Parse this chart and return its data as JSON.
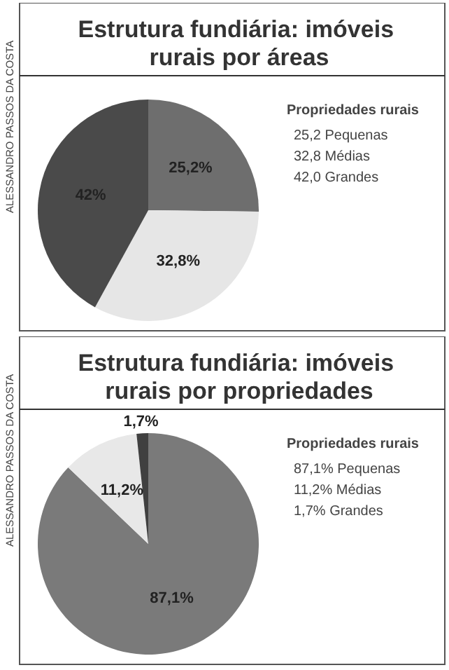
{
  "chart_data": [
    {
      "type": "pie",
      "title": "Estrutura fundiária: imóveis rurais por áreas",
      "categories": [
        null,
        null,
        null
      ],
      "values": [
        25.2,
        32.8,
        42.0
      ],
      "value_labels": [
        "25,2%",
        "32,8%",
        "42%"
      ],
      "colors": [
        "#6e6e6e",
        "#e6e6e6",
        "#4a4a4a"
      ],
      "annotations": [
        "ALESSANDRO PASSOS DA COSTA",
        "Propriedades rurais",
        "25,2 Pequenas",
        "32,8 Médias",
        "42,0 Grandes"
      ]
    },
    {
      "type": "pie",
      "title": "Estrutura fundiária: imóveis rurais por propriedades",
      "categories": [
        null,
        null,
        null
      ],
      "values": [
        87.1,
        11.2,
        1.7
      ],
      "value_labels": [
        "87,1%",
        "11,2%",
        "1,7%"
      ],
      "colors": [
        "#7a7a7a",
        "#e8e8e8",
        "#404040"
      ],
      "annotations": [
        "ALESSANDRO PASSOS DA COSTA",
        "Propriedades rurais",
        "87,1% Pequenas",
        "11,2% Médias",
        "1,7% Grandes"
      ]
    }
  ]
}
